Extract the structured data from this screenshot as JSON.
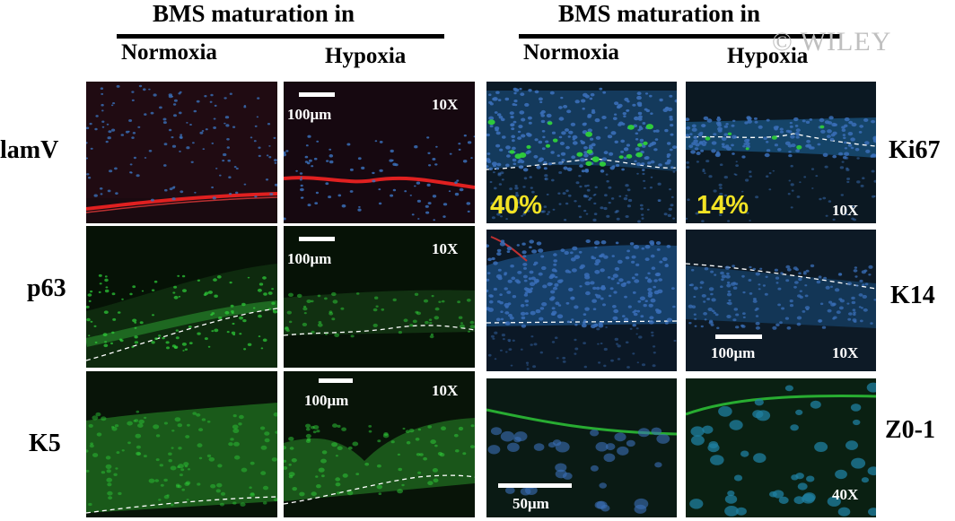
{
  "left_group": {
    "title": "BMS maturation in",
    "col_normoxia": "Normoxia",
    "col_hypoxia": "Hypoxia",
    "rows": [
      "lamV",
      "p63",
      "K5"
    ]
  },
  "right_group": {
    "title": "BMS maturation in",
    "col_normoxia": "Normoxia",
    "col_hypoxia": "Hypoxia",
    "rows": [
      "Ki67",
      "K14",
      "Z0-1"
    ]
  },
  "watermark": "© WILEY",
  "annotations": {
    "mag_10x": "10X",
    "mag_40x": "40X",
    "scale_100": "100μm",
    "scale_50": "50μm",
    "ki67_normoxia_pct": "40%",
    "ki67_hypoxia_pct": "14%"
  },
  "colors": {
    "dapi_blue": "#3a6fb8",
    "green_stain": "#2fd13a",
    "red_stain": "#e02020",
    "pct_yellow": "#f2e324"
  }
}
